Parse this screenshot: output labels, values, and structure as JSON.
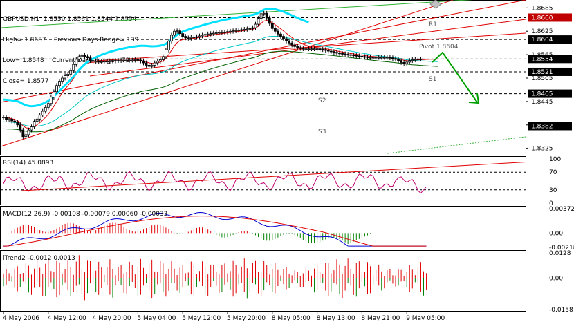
{
  "colors": {
    "bg": "#ffffff",
    "grid": "#000000",
    "bull_body": "#ffffff",
    "bear_body": "#000000",
    "candle_outline": "#000000",
    "ema_fast": "#e00000",
    "ema_slow": "#006000",
    "ema_mid": "#00c8c8",
    "trend_red": "#e00000",
    "channel_green": "#30b030",
    "cyan_line": "#00e0ff",
    "arrow": "#00a000",
    "rsi": "#c00070",
    "macd_main": "#0000d0",
    "macd_signal": "#e00000",
    "macd_hist_pos": "#e00000",
    "macd_hist_neg": "#008000",
    "itrend_pos": "#e00000",
    "itrend_neg": "#008000",
    "level_box": "#000000",
    "r1_box": "#c00000"
  },
  "header": {
    "symbol": "GBPUSD,H1  1.8550 1.8561 1.8544 1.8554",
    "line2": "High= 1.8687    Previous Days Range= 139",
    "line3": "Low= 1.8548    Current Days Range= 72",
    "line4": "Close= 1.8577"
  },
  "pivots": {
    "pivot_label": "Pivot  1.8604",
    "r1_label": "R1",
    "s1_label": "S1",
    "s2_label": "S2",
    "s3_label": "S3"
  },
  "price_axis": {
    "ticks": [
      {
        "value": 1.8685,
        "label": "1.8685"
      },
      {
        "value": 1.8625,
        "label": "1.8625"
      },
      {
        "value": 1.8565,
        "label": "1.8565"
      },
      {
        "value": 1.8505,
        "label": "1.8505"
      },
      {
        "value": 1.8445,
        "label": "1.8445"
      },
      {
        "value": 1.8385,
        "label": "1.8385"
      },
      {
        "value": 1.8325,
        "label": "1.8325"
      }
    ],
    "boxes": [
      {
        "value": 1.866,
        "label": "1.8660",
        "kind": "r1"
      },
      {
        "value": 1.8604,
        "label": "1.8604",
        "kind": "level"
      },
      {
        "value": 1.8554,
        "label": "1.8554",
        "kind": "level"
      },
      {
        "value": 1.8521,
        "label": "1.8521",
        "kind": "level"
      },
      {
        "value": 1.8465,
        "label": "1.8465",
        "kind": "level"
      },
      {
        "value": 1.8382,
        "label": "1.8382",
        "kind": "level"
      }
    ]
  },
  "rsi_panel": {
    "label": "RSI(14) 45.0893",
    "ticks": [
      {
        "value": 100,
        "label": "100"
      },
      {
        "value": 70,
        "label": "70"
      },
      {
        "value": 30,
        "label": "30"
      },
      {
        "value": 0,
        "label": "0"
      }
    ]
  },
  "macd_panel": {
    "label": "MACD(12,26,9) -0.00108 -0.00079 0.00060 -0.00033",
    "ticks": [
      {
        "value": 0.00372,
        "label": "0.00372"
      },
      {
        "value": 0.0,
        "label": "0.00"
      },
      {
        "value": -0.00218,
        "label": "-0.00218"
      }
    ]
  },
  "itrend_panel": {
    "label": "iTrend2 -0.0012 0.0013",
    "ticks": [
      {
        "value": 0.0128,
        "label": "0.0128"
      },
      {
        "value": 0.0,
        "label": "0.00"
      },
      {
        "value": -0.0158,
        "label": "-0.0158"
      }
    ]
  },
  "time_axis": {
    "labels": [
      {
        "bar": 0,
        "label": "4 May 2006"
      },
      {
        "bar": 16,
        "label": "4 May 12:00"
      },
      {
        "bar": 32,
        "label": "4 May 20:00"
      },
      {
        "bar": 48,
        "label": "5 May 04:00"
      },
      {
        "bar": 64,
        "label": "5 May 12:00"
      },
      {
        "bar": 80,
        "label": "5 May 20:00"
      },
      {
        "bar": 96,
        "label": "8 May 05:00"
      },
      {
        "bar": 112,
        "label": "8 May 13:00"
      },
      {
        "bar": 128,
        "label": "8 May 21:00"
      },
      {
        "bar": 144,
        "label": "9 May 05:00"
      }
    ]
  },
  "chart_data": [
    {
      "type": "candlestick",
      "title": "GBPUSD,H1",
      "ylim": [
        1.8312,
        1.8698
      ],
      "bar_count": 154,
      "close": [
        1.8405,
        1.8398,
        1.84,
        1.8395,
        1.8392,
        1.8385,
        1.8372,
        1.8355,
        1.836,
        1.8372,
        1.838,
        1.8394,
        1.84,
        1.841,
        1.842,
        1.843,
        1.844,
        1.8456,
        1.847,
        1.8486,
        1.8497,
        1.8505,
        1.8511,
        1.8515,
        1.8524,
        1.854,
        1.8553,
        1.856,
        1.8563,
        1.856,
        1.8557,
        1.855,
        1.8548,
        1.8548,
        1.8547,
        1.8547,
        1.8548,
        1.8548,
        1.8549,
        1.8549,
        1.855,
        1.855,
        1.8551,
        1.8551,
        1.8551,
        1.8551,
        1.8551,
        1.8552,
        1.8551,
        1.8549,
        1.8544,
        1.8538,
        1.8535,
        1.8538,
        1.8544,
        1.8548,
        1.8552,
        1.856,
        1.8577,
        1.86,
        1.8615,
        1.8625,
        1.8626,
        1.8619,
        1.8612,
        1.8608,
        1.8607,
        1.8609,
        1.861,
        1.8611,
        1.8613,
        1.8615,
        1.8617,
        1.8618,
        1.8619,
        1.862,
        1.8621,
        1.8622,
        1.8623,
        1.8623,
        1.8624,
        1.8625,
        1.8626,
        1.8627,
        1.8628,
        1.8629,
        1.863,
        1.8631,
        1.8632,
        1.8634,
        1.8643,
        1.8658,
        1.867,
        1.8671,
        1.8659,
        1.8645,
        1.8632,
        1.8625,
        1.8618,
        1.8612,
        1.8606,
        1.86,
        1.8595,
        1.859,
        1.8586,
        1.8583,
        1.8581,
        1.858,
        1.858,
        1.858,
        1.858,
        1.858,
        1.858,
        1.8579,
        1.8578,
        1.8576,
        1.8574,
        1.8573,
        1.8571,
        1.8569,
        1.8568,
        1.8567,
        1.8566,
        1.8565,
        1.8564,
        1.8563,
        1.8562,
        1.8561,
        1.856,
        1.8559,
        1.8558,
        1.8558,
        1.8558,
        1.8558,
        1.8558,
        1.8558,
        1.8558,
        1.8558,
        1.8557,
        1.8555,
        1.8553,
        1.855,
        1.8545,
        1.8542,
        1.8546,
        1.855,
        1.8552,
        1.8553,
        1.8554,
        1.8554,
        1.8554,
        1.8554,
        1.8554,
        1.8554,
        1.8554,
        1.8554
      ],
      "last_candles_visible": 150
    },
    {
      "type": "line",
      "name": "RSI(14)",
      "ylim": [
        0,
        100
      ],
      "levels": [
        70,
        30
      ],
      "last_value": 45.0893
    },
    {
      "type": "bar+line",
      "name": "MACD(12,26,9)",
      "ylim": [
        -0.00218,
        0.00372
      ],
      "values": {
        "main": -0.00108,
        "signal": -0.00079,
        "a": 0.0006,
        "b": -0.00033
      }
    },
    {
      "type": "bar",
      "name": "iTrend2",
      "ylim": [
        -0.0158,
        0.0128
      ],
      "values": [
        -0.0012,
        0.0013
      ]
    }
  ]
}
